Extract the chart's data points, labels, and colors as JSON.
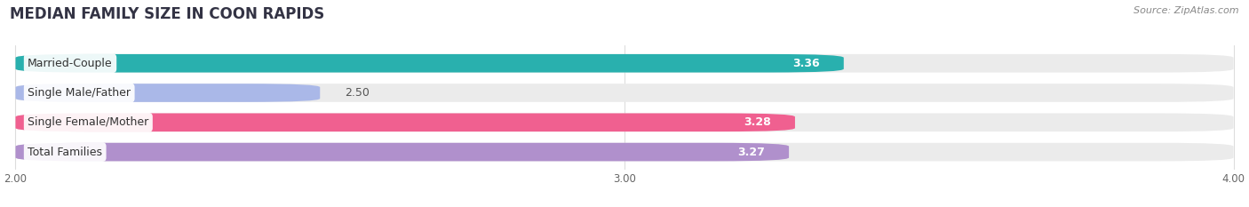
{
  "title": "MEDIAN FAMILY SIZE IN COON RAPIDS",
  "source": "Source: ZipAtlas.com",
  "categories": [
    "Married-Couple",
    "Single Male/Father",
    "Single Female/Mother",
    "Total Families"
  ],
  "values": [
    3.36,
    2.5,
    3.28,
    3.27
  ],
  "bar_colors": [
    "#29b0ae",
    "#aab8e8",
    "#f06090",
    "#b090cc"
  ],
  "bar_bg_colors": [
    "#ebebeb",
    "#ebebeb",
    "#ebebeb",
    "#ebebeb"
  ],
  "label_colors": [
    "white",
    "#555555",
    "white",
    "white"
  ],
  "xlim_min": 2.0,
  "xlim_max": 4.0,
  "xticks": [
    2.0,
    3.0,
    4.0
  ],
  "xtick_labels": [
    "2.00",
    "3.00",
    "4.00"
  ],
  "title_fontsize": 12,
  "source_fontsize": 8,
  "bar_label_fontsize": 9,
  "cat_label_fontsize": 9,
  "background_color": "#ffffff",
  "bar_height": 0.62,
  "grid_color": "#dddddd"
}
